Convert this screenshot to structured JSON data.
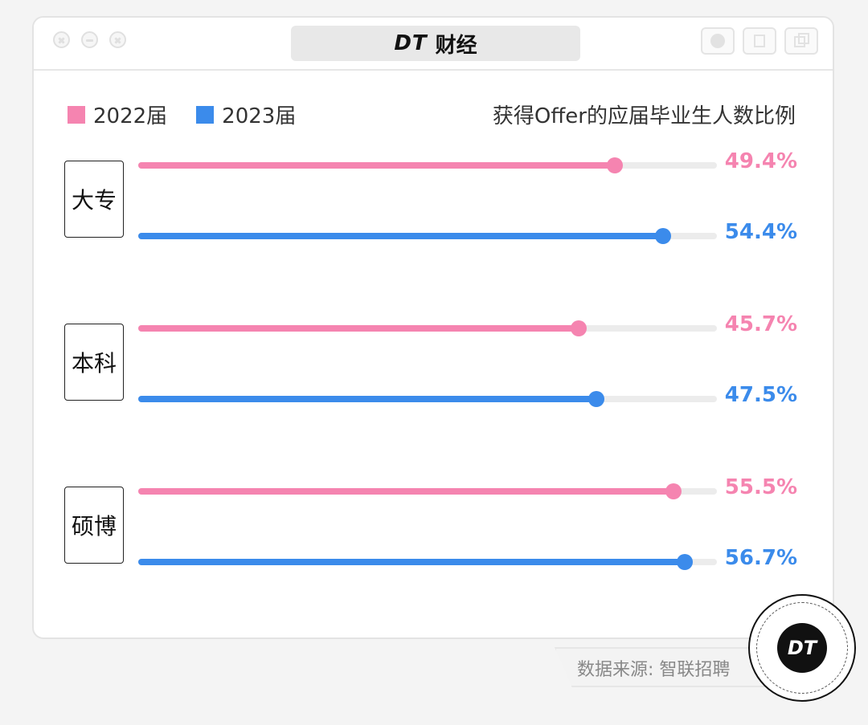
{
  "window": {
    "brand_logo": "DT",
    "brand_name": "财经"
  },
  "legend": [
    {
      "label": "2022届",
      "color": "#f584b0"
    },
    {
      "label": "2023届",
      "color": "#3b8beb"
    }
  ],
  "source": {
    "text": "数据来源: 智联招聘"
  },
  "badge": {
    "text": "DT"
  },
  "chart_data": {
    "type": "bar",
    "orientation": "horizontal",
    "title": "获得Offer的应届毕业生人数比例",
    "categories": [
      "大专",
      "本科",
      "硕博"
    ],
    "series": [
      {
        "name": "2022届",
        "color": "#f584b0",
        "values": [
          49.4,
          45.7,
          55.5
        ],
        "labels": [
          "49.4%",
          "45.7%",
          "55.5%"
        ]
      },
      {
        "name": "2023届",
        "color": "#3b8beb",
        "values": [
          54.4,
          47.5,
          56.7
        ],
        "labels": [
          "54.4%",
          "47.5%",
          "56.7%"
        ]
      }
    ],
    "unit": "%",
    "xlim": [
      0,
      60
    ],
    "legend_position": "top-left",
    "grid": false
  }
}
